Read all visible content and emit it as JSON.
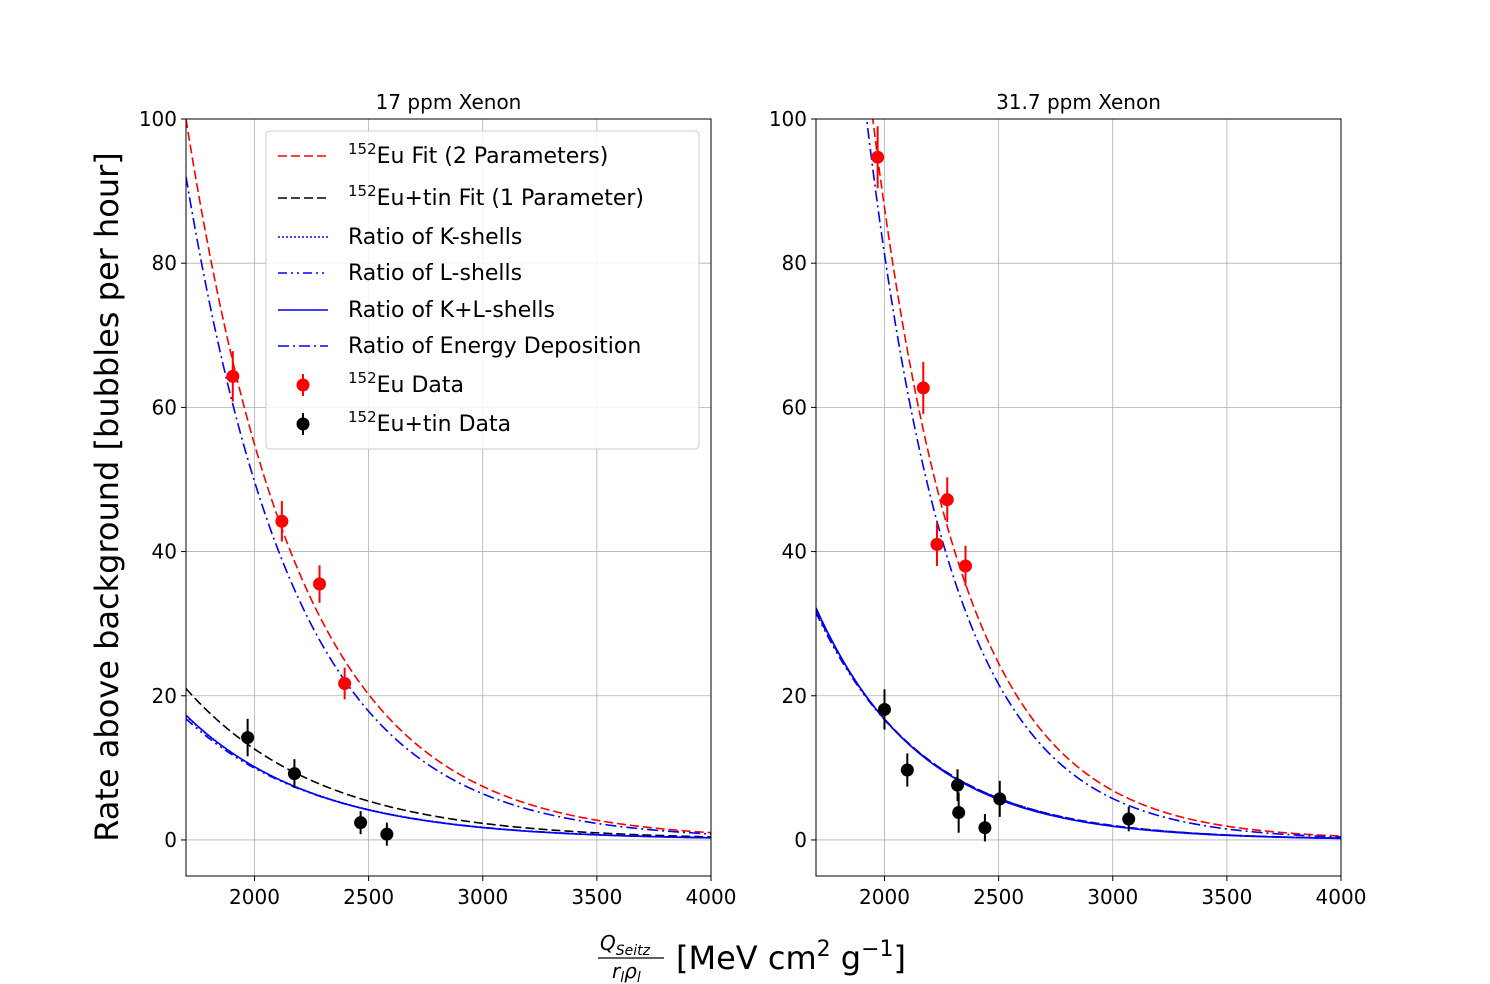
{
  "figure": {
    "ylabel": "Rate above background [bubbles per hour]",
    "xlabel_numerator": "Q",
    "xlabel_numerator_sub": "Seitz",
    "xlabel_denominator": "r",
    "xlabel_denominator_sub1": "l",
    "xlabel_denominator_rho": "ρ",
    "xlabel_denominator_sub2": "l",
    "xlabel_units_prefix": "[MeV cm",
    "xlabel_units_sup1": "2",
    "xlabel_units_mid": " g",
    "xlabel_units_sup2": "−1",
    "xlabel_units_suffix": "]"
  },
  "legend": [
    {
      "name": "eu-fit",
      "sup": "152",
      "label": "Eu Fit (2 Parameters)",
      "style": "dashed",
      "color": "#ff0000"
    },
    {
      "name": "eutin-fit",
      "sup": "152",
      "label": "Eu+tin Fit (1 Parameter)",
      "style": "dashed",
      "color": "#000000"
    },
    {
      "name": "ratio-k",
      "sup": "",
      "label": "Ratio of K-shells",
      "style": "dotted",
      "color": "#0000ff"
    },
    {
      "name": "ratio-l",
      "sup": "",
      "label": "Ratio of L-shells",
      "style": "dashdotdot",
      "color": "#0000ff"
    },
    {
      "name": "ratio-kl",
      "sup": "",
      "label": "Ratio of K+L-shells",
      "style": "solid",
      "color": "#0000ff"
    },
    {
      "name": "ratio-energy",
      "sup": "",
      "label": "Ratio of Energy Deposition",
      "style": "dashdot",
      "color": "#0000ff"
    },
    {
      "name": "eu-data",
      "sup": "152",
      "label": "Eu Data",
      "style": "marker",
      "color": "#ff0000"
    },
    {
      "name": "eutin-data",
      "sup": "152",
      "label": "Eu+tin Data",
      "style": "marker",
      "color": "#000000"
    }
  ],
  "chart_data": [
    {
      "type": "scatter",
      "title": "17 ppm Xenon",
      "xlim": [
        1700,
        4000
      ],
      "ylim": [
        -5,
        100
      ],
      "xticks": [
        2000,
        2500,
        3000,
        3500,
        4000
      ],
      "yticks": [
        0,
        20,
        40,
        60,
        80,
        100
      ],
      "grid": true,
      "legend_position": "top-right",
      "series": [
        {
          "name": "152Eu Data",
          "color": "#ff0000",
          "points": [
            {
              "x": 1905,
              "y": 64.3,
              "err": 3.5
            },
            {
              "x": 2120,
              "y": 44.2,
              "err": 2.8
            },
            {
              "x": 2285,
              "y": 35.5,
              "err": 2.6
            },
            {
              "x": 2395,
              "y": 21.7,
              "err": 2.2
            }
          ]
        },
        {
          "name": "152Eu+tin Data",
          "color": "#000000",
          "points": [
            {
              "x": 1970,
              "y": 14.2,
              "err": 2.6
            },
            {
              "x": 2175,
              "y": 9.2,
              "err": 2.0
            },
            {
              "x": 2465,
              "y": 2.4,
              "err": 1.6
            },
            {
              "x": 2580,
              "y": 0.8,
              "err": 1.6
            }
          ]
        }
      ],
      "curves": [
        {
          "name": "152Eu Fit (2 Parameters)",
          "color": "#ff0000",
          "style": "dashed",
          "a": 100,
          "k": 0.002
        },
        {
          "name": "152Eu+tin Fit (1 Parameter)",
          "color": "#000000",
          "style": "dashed",
          "a": 21,
          "k": 0.0017
        },
        {
          "name": "Ratio of Energy Deposition",
          "color": "#0000ff",
          "style": "dashdot",
          "a": 92,
          "k": 0.00205
        },
        {
          "name": "Ratio of K-shells",
          "color": "#0000ff",
          "style": "dotted",
          "a": 17.2,
          "k": 0.00176
        },
        {
          "name": "Ratio of L-shells",
          "color": "#0000ff",
          "style": "dashdotdot",
          "a": 16.8,
          "k": 0.00174
        },
        {
          "name": "Ratio of K+L-shells",
          "color": "#0000ff",
          "style": "solid",
          "a": 17.3,
          "k": 0.00178
        }
      ]
    },
    {
      "type": "scatter",
      "title": "31.7 ppm Xenon",
      "xlim": [
        1700,
        4000
      ],
      "ylim": [
        -5,
        100
      ],
      "xticks": [
        2000,
        2500,
        3000,
        3500,
        4000
      ],
      "yticks": [
        0,
        20,
        40,
        60,
        80,
        100
      ],
      "grid": true,
      "series": [
        {
          "name": "152Eu Data",
          "color": "#ff0000",
          "points": [
            {
              "x": 1970,
              "y": 94.7,
              "err": 4.3
            },
            {
              "x": 2170,
              "y": 62.7,
              "err": 3.6
            },
            {
              "x": 2230,
              "y": 41.0,
              "err": 3.0
            },
            {
              "x": 2275,
              "y": 47.2,
              "err": 3.1
            },
            {
              "x": 2355,
              "y": 38.0,
              "err": 2.8
            }
          ]
        },
        {
          "name": "152Eu+tin Data",
          "color": "#000000",
          "points": [
            {
              "x": 2000,
              "y": 18.1,
              "err": 2.8
            },
            {
              "x": 2100,
              "y": 9.7,
              "err": 2.3
            },
            {
              "x": 2320,
              "y": 7.6,
              "err": 2.2
            },
            {
              "x": 2325,
              "y": 3.8,
              "err": 2.8
            },
            {
              "x": 2440,
              "y": 1.7,
              "err": 1.9
            },
            {
              "x": 2505,
              "y": 5.7,
              "err": 2.5
            },
            {
              "x": 3070,
              "y": 2.9,
              "err": 1.7
            }
          ]
        }
      ],
      "curves": [
        {
          "name": "152Eu Fit (2 Parameters)",
          "color": "#ff0000",
          "style": "dashed",
          "a": 94.7,
          "k": 0.00255,
          "x0": 1970
        },
        {
          "name": "Ratio of Energy Deposition",
          "color": "#0000ff",
          "style": "dashdot",
          "a": 88,
          "k": 0.00265,
          "x0": 1970
        },
        {
          "name": "152Eu+tin Fit (1 Parameter)",
          "color": "#000000",
          "style": "dashed",
          "a": 31.8,
          "k": 0.00213
        },
        {
          "name": "Ratio of K-shells",
          "color": "#0000ff",
          "style": "dotted",
          "a": 32.0,
          "k": 0.00216
        },
        {
          "name": "Ratio of L-shells",
          "color": "#0000ff",
          "style": "dashdotdot",
          "a": 31.5,
          "k": 0.00212
        },
        {
          "name": "Ratio of K+L-shells",
          "color": "#0000ff",
          "style": "solid",
          "a": 32.2,
          "k": 0.00218
        }
      ]
    }
  ]
}
